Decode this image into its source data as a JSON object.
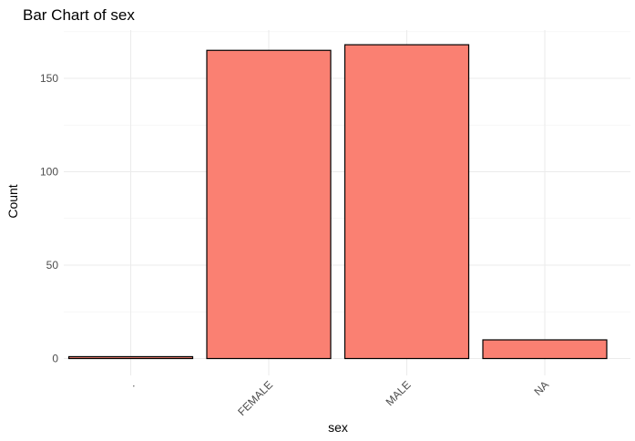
{
  "chart_data": {
    "type": "bar",
    "title": "Bar Chart of sex",
    "xlabel": "sex",
    "ylabel": "Count",
    "categories": [
      ".",
      "FEMALE",
      "MALE",
      "NA"
    ],
    "values": [
      1,
      165,
      168,
      10
    ],
    "ylim": [
      0,
      175
    ],
    "yticks": [
      0,
      50,
      100,
      150
    ],
    "grid": true,
    "legend": "none",
    "bar_fill": "#FA8072",
    "bar_stroke": "#000000",
    "x_tick_rotation": 45
  }
}
